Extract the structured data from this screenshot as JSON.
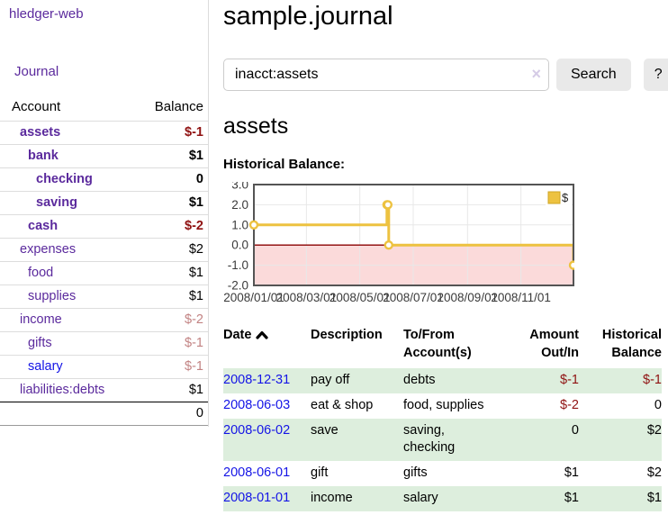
{
  "sidebar": {
    "brand": "hledger-web",
    "nav": {
      "journal_label": "Journal"
    },
    "accounts_table": {
      "headers": {
        "account": "Account",
        "balance": "Balance"
      },
      "rows": [
        {
          "name": "assets",
          "indent": 0,
          "bold": true,
          "balance": "$-1",
          "balance_style": "negative",
          "link_style": "purple"
        },
        {
          "name": "bank",
          "indent": 1,
          "bold": true,
          "balance": "$1",
          "balance_style": "normal",
          "link_style": "purple"
        },
        {
          "name": "checking",
          "indent": 2,
          "bold": true,
          "balance": "0",
          "balance_style": "normal",
          "link_style": "purple"
        },
        {
          "name": "saving",
          "indent": 2,
          "bold": true,
          "balance": "$1",
          "balance_style": "normal",
          "link_style": "purple"
        },
        {
          "name": "cash",
          "indent": 1,
          "bold": true,
          "balance": "$-2",
          "balance_style": "negative",
          "link_style": "purple"
        },
        {
          "name": "expenses",
          "indent": 0,
          "bold": false,
          "balance": "$2",
          "balance_style": "normal",
          "link_style": "purple"
        },
        {
          "name": "food",
          "indent": 1,
          "bold": false,
          "balance": "$1",
          "balance_style": "normal",
          "link_style": "purple"
        },
        {
          "name": "supplies",
          "indent": 1,
          "bold": false,
          "balance": "$1",
          "balance_style": "normal",
          "link_style": "purple"
        },
        {
          "name": "income",
          "indent": 0,
          "bold": false,
          "balance": "$-2",
          "balance_style": "negative-dim",
          "link_style": "purple"
        },
        {
          "name": "gifts",
          "indent": 1,
          "bold": false,
          "balance": "$-1",
          "balance_style": "negative-dim",
          "link_style": "purple"
        },
        {
          "name": "salary",
          "indent": 1,
          "bold": false,
          "balance": "$-1",
          "balance_style": "negative-dim",
          "link_style": "blue"
        },
        {
          "name": "liabilities:debts",
          "indent": 0,
          "bold": false,
          "balance": "$1",
          "balance_style": "normal",
          "link_style": "purple"
        }
      ],
      "total": "0"
    }
  },
  "header": {
    "title": "sample.journal"
  },
  "search": {
    "query": "inacct:assets",
    "clear_icon": "×",
    "search_label": "Search",
    "help_label": "?"
  },
  "account_page": {
    "heading": "assets",
    "chart_label": "Historical Balance:"
  },
  "chart_data": {
    "type": "line",
    "title": "Historical Balance:",
    "legend": [
      {
        "name": "$",
        "color": "#EDC240"
      }
    ],
    "legend_position": "top-right",
    "step": true,
    "x_range": [
      "2008-01-01",
      "2008-12-31"
    ],
    "ylim": [
      -2,
      3
    ],
    "y_ticks": [
      {
        "v": 3,
        "label": "3.0"
      },
      {
        "v": 2,
        "label": "2.0"
      },
      {
        "v": 1,
        "label": "1.0"
      },
      {
        "v": 0,
        "label": "0.0"
      },
      {
        "v": -1,
        "label": "-1.0"
      },
      {
        "v": -2,
        "label": "-2.0"
      }
    ],
    "x_ticks": [
      {
        "date": "2008-01-01",
        "label": "2008/01/01"
      },
      {
        "date": "2008-03-01",
        "label": "2008/03/01"
      },
      {
        "date": "2008-05-01",
        "label": "2008/05/01"
      },
      {
        "date": "2008-07-01",
        "label": "2008/07/01"
      },
      {
        "date": "2008-09-01",
        "label": "2008/09/01"
      },
      {
        "date": "2008-11-01",
        "label": "2008/11/01"
      }
    ],
    "series": [
      {
        "name": "$",
        "color": "#EDC240",
        "points": [
          {
            "date": "2008-01-01",
            "value": 1
          },
          {
            "date": "2008-06-01",
            "value": 2
          },
          {
            "date": "2008-06-02",
            "value": 2
          },
          {
            "date": "2008-06-03",
            "value": 0
          },
          {
            "date": "2008-12-31",
            "value": -1
          }
        ]
      }
    ],
    "grid": true,
    "grid_color": "#e8e8e8",
    "border_color": "#545454",
    "zero_line_color": "#8b0000",
    "negative_region_color": "#fbdada",
    "tick_label_color": "#3a3a3a"
  },
  "register": {
    "headers": {
      "date": "Date",
      "description": "Description",
      "accounts": "To/From Account(s)",
      "amount": "Amount Out/In",
      "balance": "Historical Balance"
    },
    "sort_indicator": "up",
    "rows": [
      {
        "date": "2008-12-31",
        "description": "pay off",
        "accounts": "debts",
        "amount": "$-1",
        "amount_style": "negative",
        "balance": "$-1",
        "balance_style": "negative"
      },
      {
        "date": "2008-06-03",
        "description": "eat & shop",
        "accounts": "food, supplies",
        "amount": "$-2",
        "amount_style": "negative",
        "balance": "0",
        "balance_style": "normal"
      },
      {
        "date": "2008-06-02",
        "description": "save",
        "accounts": "saving, checking",
        "amount": "0",
        "amount_style": "normal",
        "balance": "$2",
        "balance_style": "normal"
      },
      {
        "date": "2008-06-01",
        "description": "gift",
        "accounts": "gifts",
        "amount": "$1",
        "amount_style": "normal",
        "balance": "$2",
        "balance_style": "normal"
      },
      {
        "date": "2008-01-01",
        "description": "income",
        "accounts": "salary",
        "amount": "$1",
        "amount_style": "normal",
        "balance": "$1",
        "balance_style": "normal"
      }
    ]
  },
  "colors": {
    "link_purple": "#5b2a9d",
    "link_blue": "#1414e6",
    "negative": "#8f1111",
    "negative_dim": "#c28383",
    "row_stripe_green": "#ddeedd",
    "button_bg": "#e9e9e9",
    "chart_line_gold": "#EDC240"
  }
}
